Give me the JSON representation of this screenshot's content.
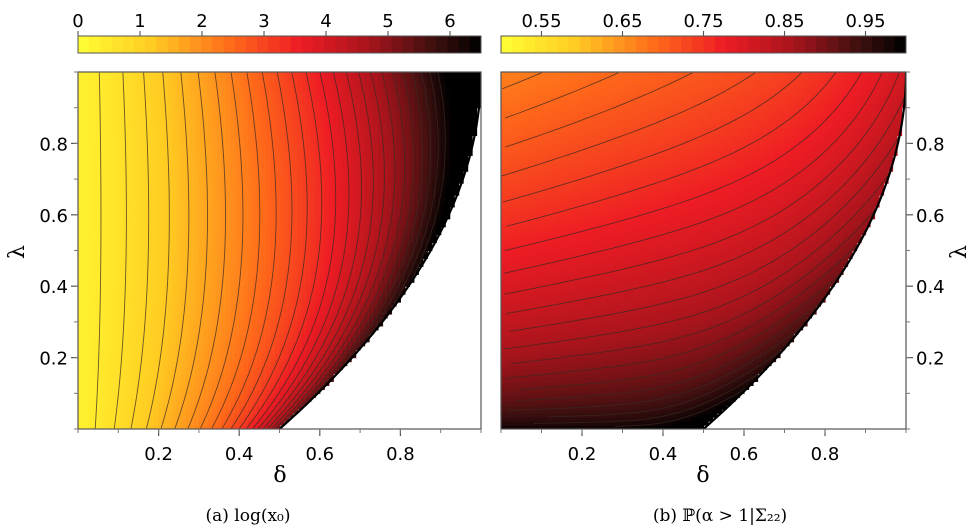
{
  "chart_data": [
    {
      "type": "heatmap",
      "caption": "(a) log(x₀)",
      "xlabel": "δ",
      "ylabel": "λ",
      "xlim": [
        0,
        1
      ],
      "ylim": [
        0,
        1
      ],
      "x_ticks": [
        0.2,
        0.4,
        0.6,
        0.8
      ],
      "x_tick_labels": [
        "0.2",
        "0.4",
        "0.6",
        "0.8"
      ],
      "y_ticks": [
        0.2,
        0.4,
        0.6,
        0.8
      ],
      "y_tick_labels": [
        "0.2",
        "0.4",
        "0.6",
        "0.8"
      ],
      "colorbar": {
        "position": "top",
        "range": [
          0,
          6.5
        ],
        "ticks": [
          0,
          1,
          2,
          3,
          4,
          5,
          6
        ],
        "tick_labels": [
          "0",
          "1",
          "2",
          "3",
          "4",
          "5",
          "6"
        ],
        "colormap": "yellow-orange-red-black"
      },
      "region_boundary": "delta = 0.5 at lambda = 0 curving to delta = 1 at lambda = 1; undefined (white) region to the right",
      "contour_levels": 26
    },
    {
      "type": "heatmap",
      "caption": "(b) ℙ(α > 1|Σ₂₂)",
      "xlabel": "δ",
      "ylabel": "λ",
      "xlim": [
        0,
        1
      ],
      "ylim": [
        0,
        1
      ],
      "x_ticks": [
        0.2,
        0.4,
        0.6,
        0.8
      ],
      "x_tick_labels": [
        "0.2",
        "0.4",
        "0.6",
        "0.8"
      ],
      "y_ticks": [
        0.2,
        0.4,
        0.6,
        0.8
      ],
      "y_tick_labels": [
        "0.2",
        "0.4",
        "0.6",
        "0.8"
      ],
      "colorbar": {
        "position": "top",
        "range": [
          0.5,
          1.0
        ],
        "ticks": [
          0.55,
          0.65,
          0.75,
          0.85,
          0.95
        ],
        "tick_labels": [
          "0.55",
          "0.65",
          "0.75",
          "0.85",
          "0.95"
        ],
        "colormap": "yellow-orange-red-black"
      },
      "region_boundary": "delta = 0.5 at lambda = 0 curving to delta = 1 at lambda = 1; undefined (white) region to the right",
      "contour_levels": 30
    }
  ]
}
